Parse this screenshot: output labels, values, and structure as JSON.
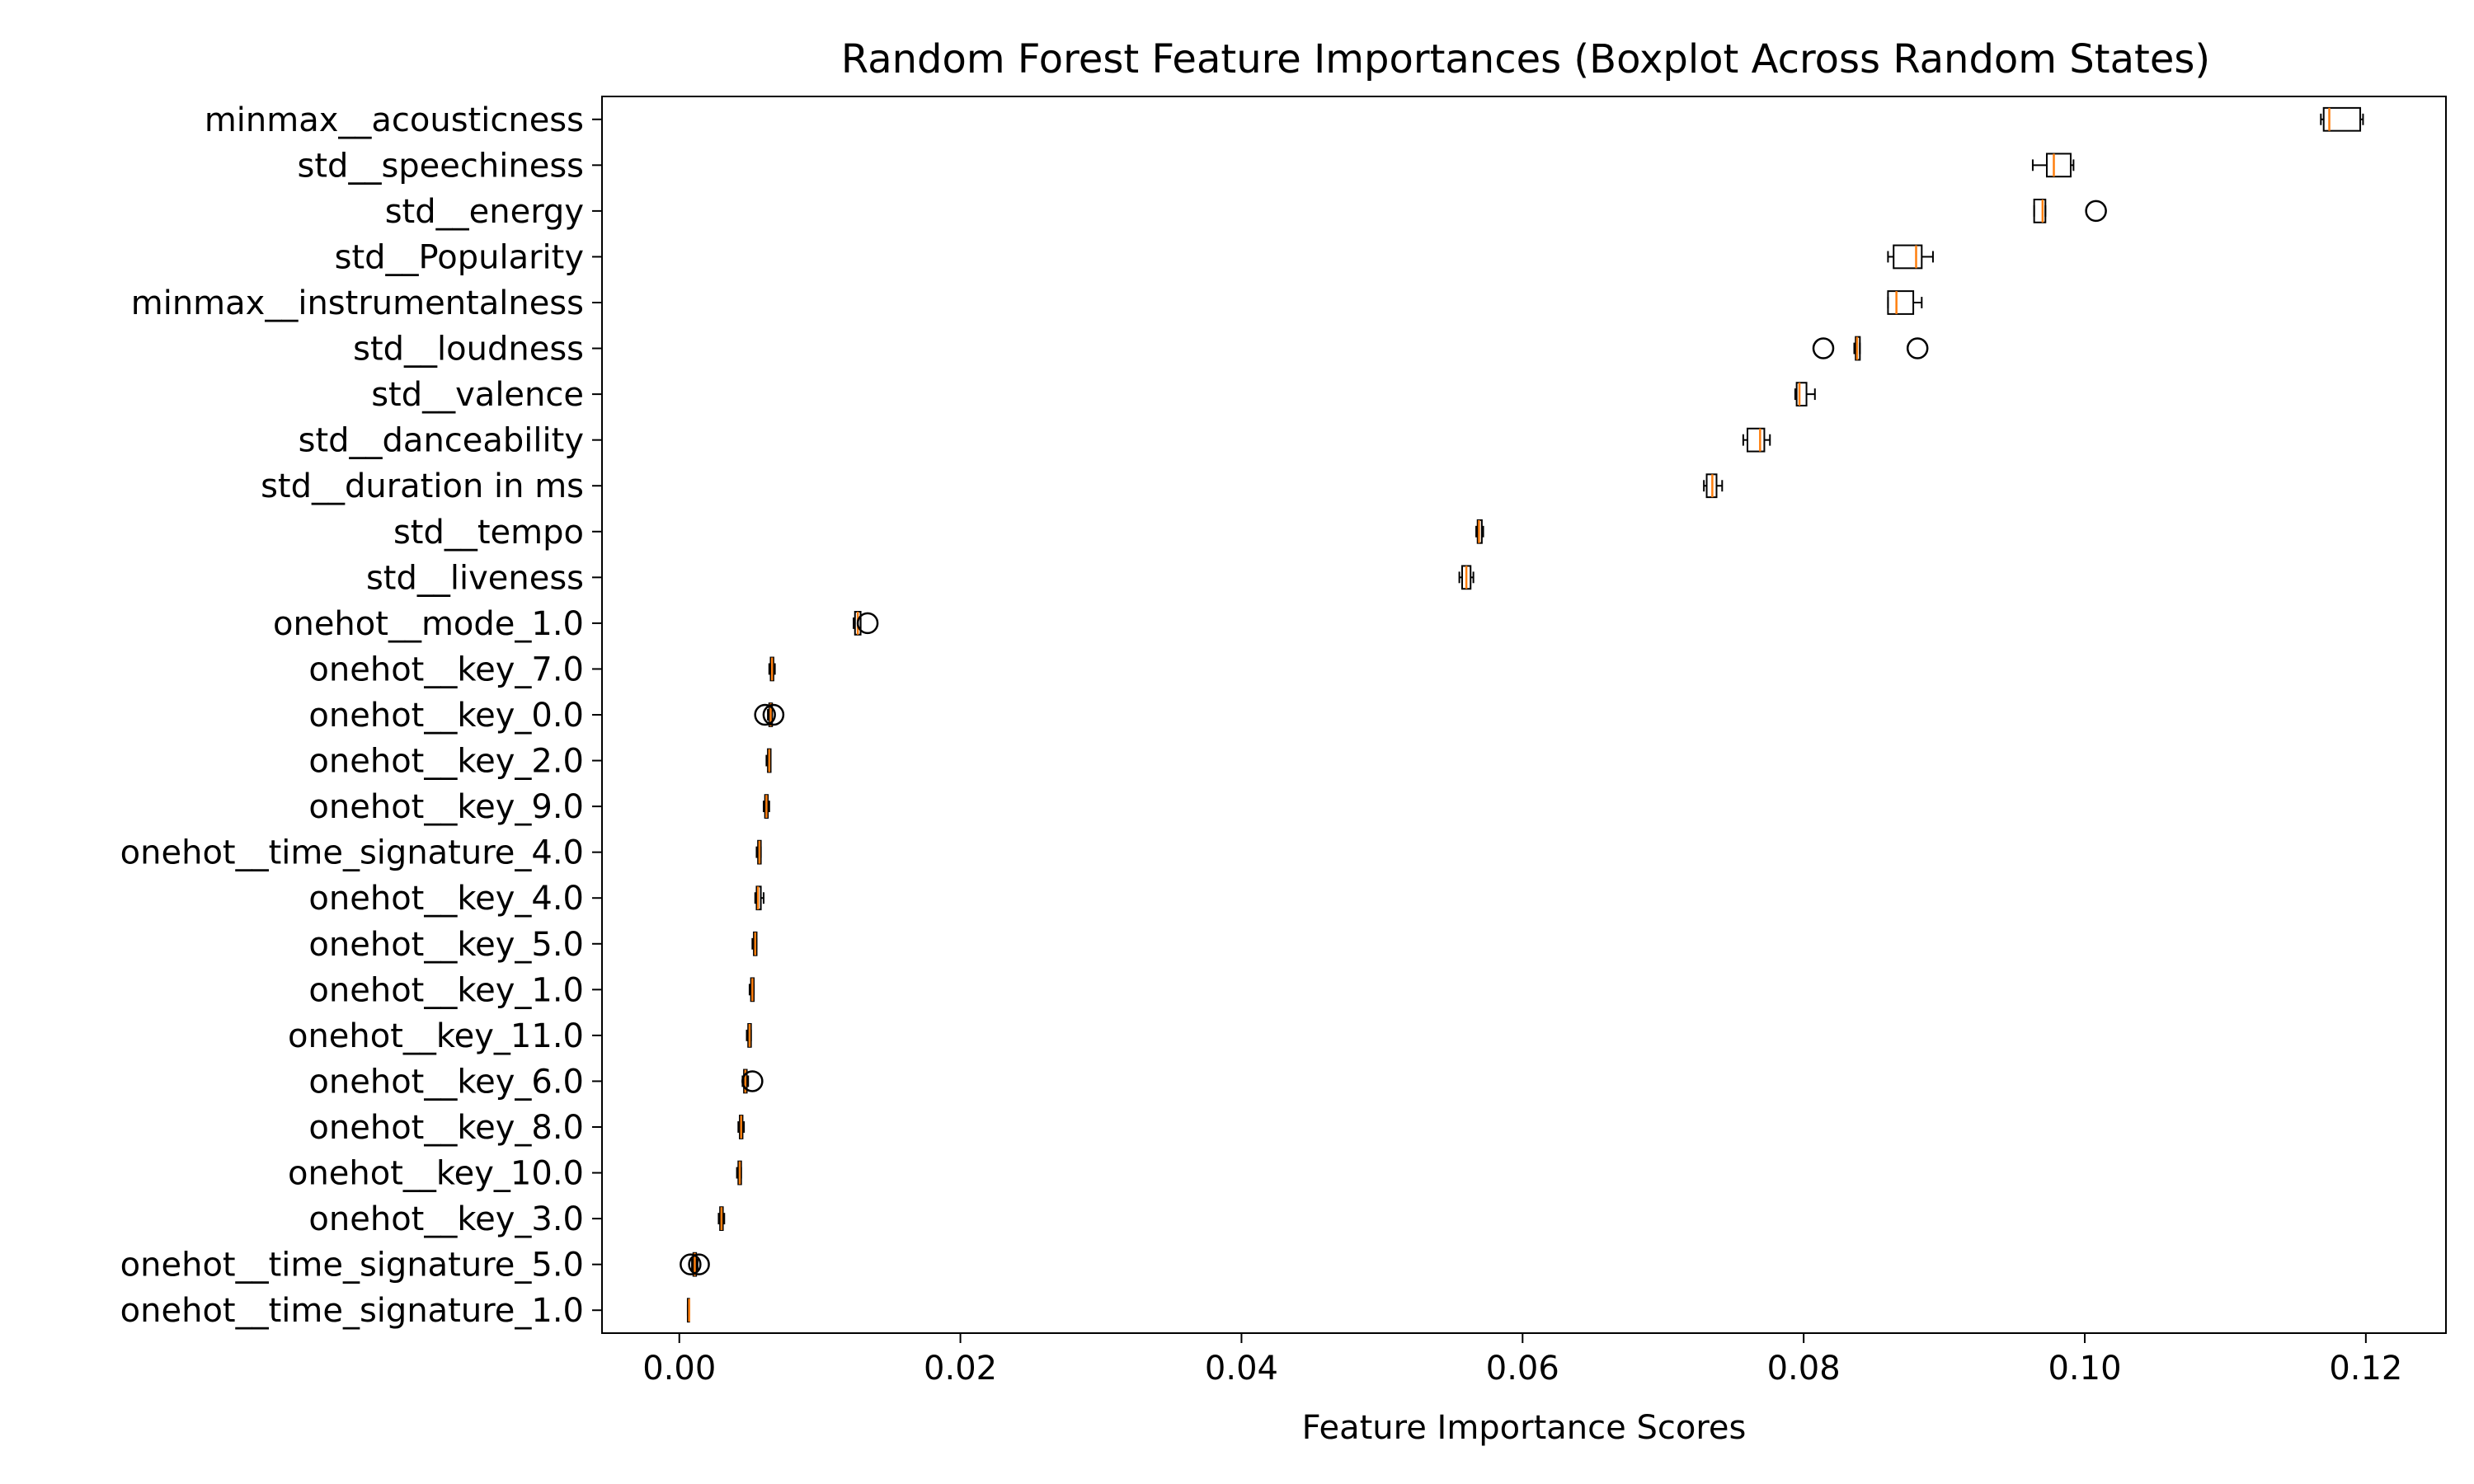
{
  "chart_data": {
    "type": "boxplot",
    "orientation": "horizontal",
    "title": "Random Forest Feature Importances (Boxplot Across Random States)",
    "xlabel": "Feature Importance Scores",
    "ylabel": "",
    "xlim": [
      -0.0055,
      0.1257
    ],
    "xticks": [
      0.0,
      0.02,
      0.04,
      0.06,
      0.08,
      0.1,
      0.12
    ],
    "xtick_labels": [
      "0.00",
      "0.02",
      "0.04",
      "0.06",
      "0.08",
      "0.10",
      "0.12"
    ],
    "grid": false,
    "colors": {
      "box": "#000000",
      "median": "#ff7f0e",
      "whisker": "#000000"
    },
    "boxes": [
      {
        "label": "minmax__acousticness",
        "whislo": 0.1168,
        "q1": 0.117,
        "med": 0.1174,
        "q3": 0.1196,
        "whishi": 0.1198,
        "fliers": []
      },
      {
        "label": "std__speechiness",
        "whislo": 0.0963,
        "q1": 0.0973,
        "med": 0.0978,
        "q3": 0.099,
        "whishi": 0.0992,
        "fliers": []
      },
      {
        "label": "std__energy",
        "whislo": 0.0964,
        "q1": 0.0964,
        "med": 0.097,
        "q3": 0.0972,
        "whishi": 0.0972,
        "fliers": [
          0.1008
        ]
      },
      {
        "label": "std__Popularity",
        "whislo": 0.086,
        "q1": 0.0864,
        "med": 0.088,
        "q3": 0.0884,
        "whishi": 0.0892,
        "fliers": []
      },
      {
        "label": "minmax__instrumentalness",
        "whislo": 0.086,
        "q1": 0.086,
        "med": 0.0866,
        "q3": 0.0878,
        "whishi": 0.0884,
        "fliers": []
      },
      {
        "label": "std__loudness",
        "whislo": 0.0836,
        "q1": 0.0837,
        "med": 0.0838,
        "q3": 0.084,
        "whishi": 0.084,
        "fliers": [
          0.0814,
          0.0881
        ]
      },
      {
        "label": "std__valence",
        "whislo": 0.0794,
        "q1": 0.0795,
        "med": 0.0797,
        "q3": 0.0802,
        "whishi": 0.0808,
        "fliers": []
      },
      {
        "label": "std__danceability",
        "whislo": 0.0757,
        "q1": 0.076,
        "med": 0.0769,
        "q3": 0.0772,
        "whishi": 0.0776,
        "fliers": []
      },
      {
        "label": "std__duration in ms",
        "whislo": 0.0729,
        "q1": 0.0731,
        "med": 0.0735,
        "q3": 0.0738,
        "whishi": 0.0742,
        "fliers": []
      },
      {
        "label": "std__tempo",
        "whislo": 0.0567,
        "q1": 0.0568,
        "med": 0.0569,
        "q3": 0.0571,
        "whishi": 0.0572,
        "fliers": []
      },
      {
        "label": "std__liveness",
        "whislo": 0.0555,
        "q1": 0.0557,
        "med": 0.056,
        "q3": 0.0563,
        "whishi": 0.0565,
        "fliers": []
      },
      {
        "label": "onehot__mode_1.0",
        "whislo": 0.0124,
        "q1": 0.0125,
        "med": 0.0127,
        "q3": 0.0129,
        "whishi": 0.0129,
        "fliers": [
          0.0134
        ]
      },
      {
        "label": "onehot__key_7.0",
        "whislo": 0.0064,
        "q1": 0.0065,
        "med": 0.0066,
        "q3": 0.0067,
        "whishi": 0.0068,
        "fliers": []
      },
      {
        "label": "onehot__key_0.0",
        "whislo": 0.0063,
        "q1": 0.0064,
        "med": 0.0065,
        "q3": 0.0066,
        "whishi": 0.0066,
        "fliers": [
          0.0061,
          0.0067
        ]
      },
      {
        "label": "onehot__key_2.0",
        "whislo": 0.0062,
        "q1": 0.0063,
        "med": 0.0064,
        "q3": 0.0065,
        "whishi": 0.0065,
        "fliers": []
      },
      {
        "label": "onehot__key_9.0",
        "whislo": 0.006,
        "q1": 0.0061,
        "med": 0.0062,
        "q3": 0.0063,
        "whishi": 0.0064,
        "fliers": []
      },
      {
        "label": "onehot__time_signature_4.0",
        "whislo": 0.0055,
        "q1": 0.0056,
        "med": 0.0057,
        "q3": 0.0058,
        "whishi": 0.0058,
        "fliers": []
      },
      {
        "label": "onehot__key_4.0",
        "whislo": 0.0054,
        "q1": 0.0055,
        "med": 0.0056,
        "q3": 0.0058,
        "whishi": 0.006,
        "fliers": []
      },
      {
        "label": "onehot__key_5.0",
        "whislo": 0.0052,
        "q1": 0.0053,
        "med": 0.0054,
        "q3": 0.0055,
        "whishi": 0.0055,
        "fliers": []
      },
      {
        "label": "onehot__key_1.0",
        "whislo": 0.005,
        "q1": 0.0051,
        "med": 0.0052,
        "q3": 0.0053,
        "whishi": 0.0053,
        "fliers": []
      },
      {
        "label": "onehot__key_11.0",
        "whislo": 0.0048,
        "q1": 0.0049,
        "med": 0.005,
        "q3": 0.0051,
        "whishi": 0.0051,
        "fliers": []
      },
      {
        "label": "onehot__key_6.0",
        "whislo": 0.0045,
        "q1": 0.0046,
        "med": 0.0047,
        "q3": 0.0048,
        "whishi": 0.0049,
        "fliers": [
          0.0052
        ]
      },
      {
        "label": "onehot__key_8.0",
        "whislo": 0.0042,
        "q1": 0.0043,
        "med": 0.0044,
        "q3": 0.0045,
        "whishi": 0.0046,
        "fliers": []
      },
      {
        "label": "onehot__key_10.0",
        "whislo": 0.0041,
        "q1": 0.0042,
        "med": 0.0043,
        "q3": 0.0044,
        "whishi": 0.0044,
        "fliers": []
      },
      {
        "label": "onehot__key_3.0",
        "whislo": 0.0028,
        "q1": 0.0029,
        "med": 0.003,
        "q3": 0.0031,
        "whishi": 0.0032,
        "fliers": []
      },
      {
        "label": "onehot__time_signature_5.0",
        "whislo": 0.0009,
        "q1": 0.001,
        "med": 0.0011,
        "q3": 0.0012,
        "whishi": 0.0013,
        "fliers": [
          0.0008,
          0.0014
        ]
      },
      {
        "label": "onehot__time_signature_1.0",
        "whislo": 0.0006,
        "q1": 0.0006,
        "med": 0.0007,
        "q3": 0.0007,
        "whishi": 0.0007,
        "fliers": []
      }
    ]
  }
}
